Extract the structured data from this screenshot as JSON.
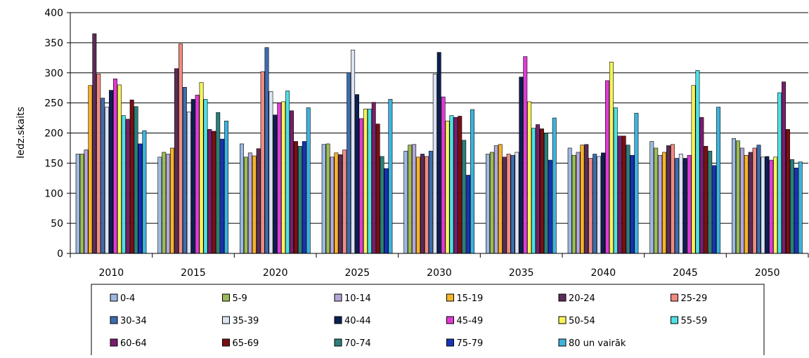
{
  "chart_data": {
    "type": "bar",
    "title": "",
    "xlabel": "",
    "ylabel": "Iedz.skaits",
    "ylim": [
      0,
      400
    ],
    "yticks": [
      0,
      50,
      100,
      150,
      200,
      250,
      300,
      350,
      400
    ],
    "grid": true,
    "legend_position": "bottom",
    "categories": [
      "2010",
      "2015",
      "2020",
      "2025",
      "2030",
      "2035",
      "2040",
      "2045",
      "2050"
    ],
    "series": [
      {
        "name": "0-4",
        "color": "#9DB9E0",
        "values": [
          165,
          160,
          182,
          181,
          170,
          165,
          175,
          186,
          191
        ]
      },
      {
        "name": "5-9",
        "color": "#9BBB59",
        "values": [
          165,
          168,
          160,
          182,
          180,
          168,
          163,
          175,
          187
        ]
      },
      {
        "name": "10-14",
        "color": "#B4A7D6",
        "values": [
          172,
          165,
          167,
          160,
          181,
          179,
          168,
          163,
          175
        ]
      },
      {
        "name": "15-19",
        "color": "#F7B32B",
        "values": [
          279,
          175,
          162,
          167,
          160,
          181,
          180,
          168,
          163
        ]
      },
      {
        "name": "20-24",
        "color": "#5B2C57",
        "values": [
          365,
          307,
          174,
          164,
          165,
          160,
          181,
          179,
          168
        ]
      },
      {
        "name": "25-29",
        "color": "#F28B82",
        "values": [
          298,
          348,
          302,
          172,
          161,
          165,
          158,
          181,
          175
        ]
      },
      {
        "name": "30-34",
        "color": "#3C6DB0",
        "values": [
          258,
          276,
          342,
          300,
          170,
          163,
          165,
          158,
          180
        ]
      },
      {
        "name": "35-39",
        "color": "#DDE3F2",
        "values": [
          243,
          235,
          269,
          338,
          298,
          168,
          161,
          165,
          160
        ]
      },
      {
        "name": "40-44",
        "color": "#0B1F52",
        "values": [
          271,
          256,
          230,
          264,
          334,
          293,
          167,
          158,
          161
        ]
      },
      {
        "name": "45-49",
        "color": "#E23AD8",
        "values": [
          290,
          263,
          250,
          224,
          260,
          327,
          287,
          163,
          155
        ]
      },
      {
        "name": "50-54",
        "color": "#F6F55A",
        "values": [
          280,
          284,
          252,
          240,
          220,
          252,
          318,
          279,
          160
        ]
      },
      {
        "name": "55-59",
        "color": "#4FE0E6",
        "values": [
          229,
          256,
          270,
          240,
          229,
          208,
          242,
          304,
          267
        ]
      },
      {
        "name": "60-64",
        "color": "#7A1E6E",
        "values": [
          223,
          206,
          237,
          251,
          226,
          214,
          195,
          226,
          285
        ]
      },
      {
        "name": "65-69",
        "color": "#7A0F12",
        "values": [
          255,
          203,
          186,
          215,
          228,
          207,
          195,
          178,
          206
        ]
      },
      {
        "name": "70-74",
        "color": "#2C7F7A",
        "values": [
          244,
          234,
          178,
          161,
          188,
          200,
          180,
          170,
          156
        ]
      },
      {
        "name": "75-79",
        "color": "#1633B8",
        "values": [
          182,
          190,
          186,
          141,
          130,
          155,
          163,
          146,
          142
        ]
      },
      {
        "name": "80 un vairāk",
        "color": "#3FB3DE",
        "values": [
          204,
          220,
          242,
          256,
          239,
          225,
          233,
          243,
          152
        ]
      }
    ]
  }
}
